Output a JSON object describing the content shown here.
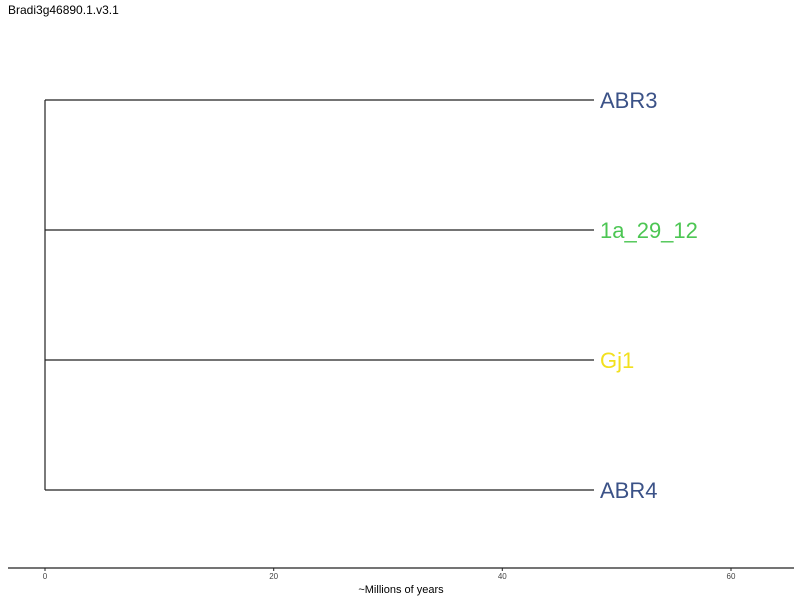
{
  "title": "Bradi3g46890.1.v3.1",
  "axis": {
    "label": "~Millions of years",
    "ticks": [
      "0",
      "20",
      "40",
      "60"
    ]
  },
  "leaves": [
    {
      "label": "ABR3",
      "color": "#3b5287"
    },
    {
      "label": "1a_29_12",
      "color": "#4cc653"
    },
    {
      "label": "Gj1",
      "color": "#f2e01e"
    },
    {
      "label": "ABR4",
      "color": "#3b5287"
    }
  ]
}
